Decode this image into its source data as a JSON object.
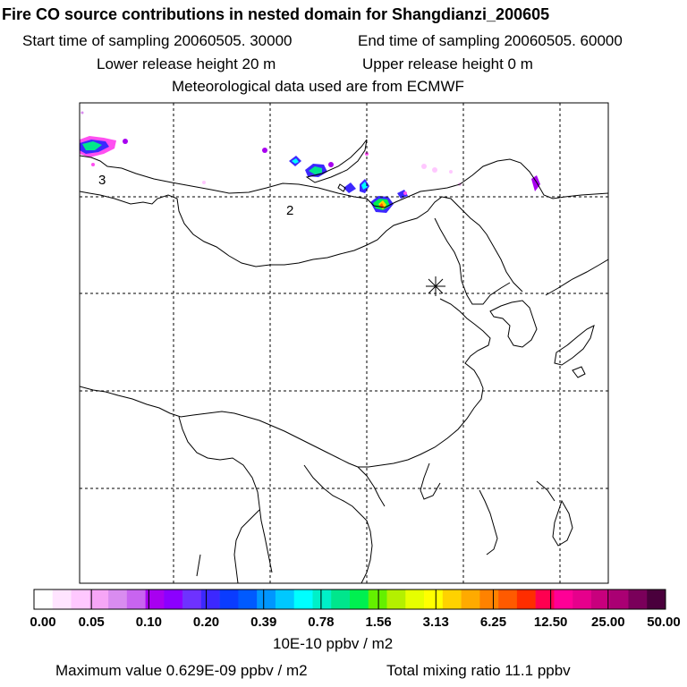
{
  "header": {
    "title": "Fire CO source contributions in nested domain for Shangdianzi_200605",
    "start_time": "Start time of sampling 20060505. 30000",
    "end_time": "End time of sampling 20060505. 60000",
    "lower_height": "Lower release height   20 m",
    "upper_height": "Upper release height    0 m",
    "meteo": "Meteorological data used are from ECMWF"
  },
  "map": {
    "labels": [
      "3",
      "2"
    ],
    "receptor_marker": "station-star"
  },
  "colorbar": {
    "colors": [
      "#ffffff",
      "#ffe4ff",
      "#ffc8ff",
      "#f6a6f6",
      "#d98cf0",
      "#c864f0",
      "#a800f0",
      "#8c00ff",
      "#6e32ff",
      "#3c28ff",
      "#0a3cff",
      "#005aff",
      "#0096ff",
      "#00c8ff",
      "#00ffff",
      "#00f0c8",
      "#00e68c",
      "#00f050",
      "#64f000",
      "#b4f000",
      "#e6ff00",
      "#ffff00",
      "#ffd200",
      "#ffaa00",
      "#ff8200",
      "#ff5a00",
      "#ff2d00",
      "#ff0050",
      "#ff0096",
      "#e6008c",
      "#c8007d",
      "#aa0073",
      "#7a005a",
      "#4a003c"
    ],
    "ticks": [
      "0.00",
      "0.05",
      "0.10",
      "0.20",
      "0.39",
      "0.78",
      "1.56",
      "3.13",
      "6.25",
      "12.50",
      "25.00",
      "50.00"
    ],
    "unit": "10E-10 ppbv / m2"
  },
  "footer": {
    "max_value": "Maximum value  0.629E-09 ppbv / m2",
    "total_mixing": "Total mixing ratio       11.1 ppbv"
  }
}
